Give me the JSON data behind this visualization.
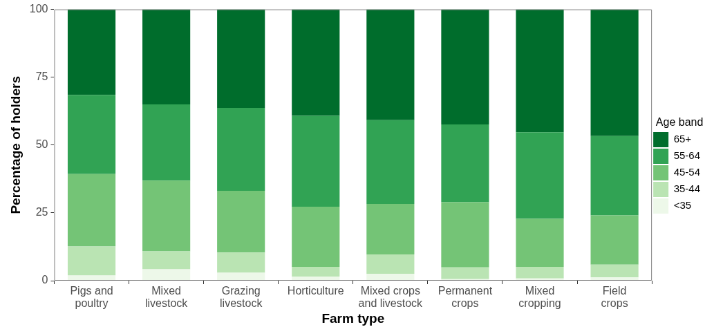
{
  "chart_data": {
    "type": "bar",
    "stacked": true,
    "xlabel": "Farm type",
    "ylabel": "Percentage of holders",
    "legend_title": "Age band",
    "legend": "right",
    "categories": [
      "Pigs and\npoultry",
      "Mixed\nlivestock",
      "Grazing\nlivestock",
      "Horticulture",
      "Mixed crops\nand livestock",
      "Permanent\ncrops",
      "Mixed\ncropping",
      "Field\ncrops"
    ],
    "ylim": [
      0,
      100
    ],
    "yticks": [
      0,
      25,
      50,
      75,
      100
    ],
    "series": [
      {
        "name": "<35",
        "color": "#edf8e9",
        "values": [
          1.9,
          4.2,
          2.9,
          1.5,
          2.5,
          0.6,
          0.8,
          1.2
        ]
      },
      {
        "name": "35-44",
        "color": "#bae4b3",
        "values": [
          10.7,
          6.6,
          7.5,
          3.6,
          7.2,
          4.3,
          4.3,
          4.7
        ]
      },
      {
        "name": "45-54",
        "color": "#74c476",
        "values": [
          26.7,
          26.1,
          22.7,
          22.2,
          18.6,
          24.0,
          17.7,
          18.2
        ]
      },
      {
        "name": "55-64",
        "color": "#31a354",
        "values": [
          29.2,
          28.1,
          30.6,
          33.5,
          30.9,
          28.7,
          31.9,
          29.2
        ]
      },
      {
        "name": "65+",
        "color": "#006d2c",
        "values": [
          31.5,
          35.0,
          36.3,
          39.2,
          40.8,
          42.4,
          45.3,
          46.7
        ]
      }
    ]
  }
}
